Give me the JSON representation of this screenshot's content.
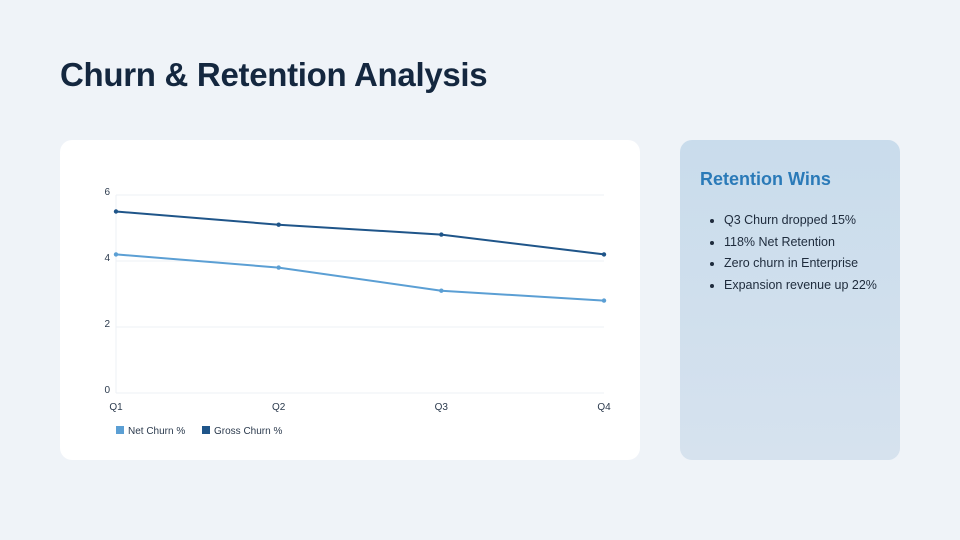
{
  "page": {
    "title": "Churn & Retention Analysis"
  },
  "sidebar": {
    "heading": "Retention Wins",
    "items": [
      "Q3 Churn dropped 15%",
      "118% Net Retention",
      "Zero churn in Enterprise",
      "Expansion revenue up 22%"
    ]
  },
  "chart_data": {
    "type": "line",
    "categories": [
      "Q1",
      "Q2",
      "Q3",
      "Q4"
    ],
    "series": [
      {
        "name": "Net Churn %",
        "values": [
          4.2,
          3.8,
          3.1,
          2.8
        ],
        "color": "#5b9fd4"
      },
      {
        "name": "Gross Churn %",
        "values": [
          5.5,
          5.1,
          4.8,
          4.2
        ],
        "color": "#1f5589"
      }
    ],
    "ylim": [
      0,
      6
    ],
    "yticks": [
      "0",
      "2",
      "4",
      "6"
    ],
    "grid": true,
    "legend": "bottom-left"
  }
}
